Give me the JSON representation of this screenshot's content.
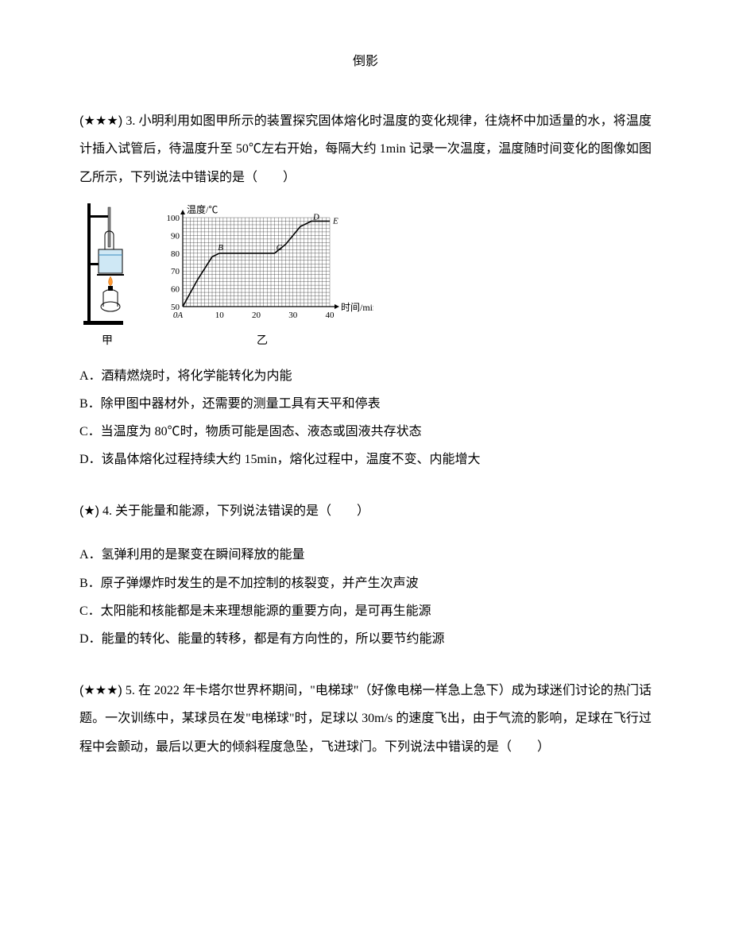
{
  "header": {
    "text": "倒影"
  },
  "q3": {
    "stars": "(★★★)",
    "number": "3.",
    "stem": "小明利用如图甲所示的装置探究固体熔化时温度的变化规律，往烧杯中加适量的水，将温度计插入试管后，待温度升至 50℃左右开始，每隔大约 1min 记录一次温度，温度随时间变化的图像如图乙所示，下列说法中错误的是（　　）",
    "figure_jia_label": "甲",
    "figure_yi_label": "乙",
    "chart": {
      "y_title": "温度/℃",
      "x_title": "时间/min",
      "y_ticks": [
        "50",
        "60",
        "70",
        "80",
        "90",
        "100"
      ],
      "x_ticks": [
        "0",
        "10",
        "20",
        "30",
        "40"
      ],
      "x_origin_label": "A",
      "point_E": "E",
      "point_B": "B",
      "point_C": "C",
      "point_D": "D",
      "grid_color": "#000000",
      "bg_color": "#ffffff",
      "line_color": "#000000",
      "points": [
        {
          "x": 0,
          "y": 50
        },
        {
          "x": 4,
          "y": 65
        },
        {
          "x": 8,
          "y": 78
        },
        {
          "x": 10,
          "y": 80
        },
        {
          "x": 15,
          "y": 80
        },
        {
          "x": 20,
          "y": 80
        },
        {
          "x": 25,
          "y": 80
        },
        {
          "x": 28,
          "y": 85
        },
        {
          "x": 32,
          "y": 95
        },
        {
          "x": 35,
          "y": 98
        },
        {
          "x": 38,
          "y": 98
        },
        {
          "x": 40,
          "y": 98
        }
      ]
    },
    "options": {
      "A": "A．酒精燃烧时，将化学能转化为内能",
      "B": "B．除甲图中器材外，还需要的测量工具有天平和停表",
      "C": "C．当温度为 80℃时，物质可能是固态、液态或固液共存状态",
      "D": "D．该晶体熔化过程持续大约 15min，熔化过程中，温度不变、内能增大"
    }
  },
  "q4": {
    "stars": "(★)",
    "number": "4.",
    "stem": "关于能量和能源，下列说法错误的是（　　）",
    "options": {
      "A": "A．氢弹利用的是聚变在瞬间释放的能量",
      "B": "B．原子弹爆炸时发生的是不加控制的核裂变，并产生次声波",
      "C": "C．太阳能和核能都是未来理想能源的重要方向，是可再生能源",
      "D": "D．能量的转化、能量的转移，都是有方向性的，所以要节约能源"
    }
  },
  "q5": {
    "stars": "(★★★)",
    "number": "5.",
    "stem": "在 2022 年卡塔尔世界杯期间，\"电梯球\"（好像电梯一样急上急下）成为球迷们讨论的热门话题。一次训练中，某球员在发\"电梯球\"时，足球以 30m/s 的速度飞出，由于气流的影响，足球在飞行过程中会颤动，最后以更大的倾斜程度急坠，飞进球门。下列说法中错误的是（　　）"
  }
}
